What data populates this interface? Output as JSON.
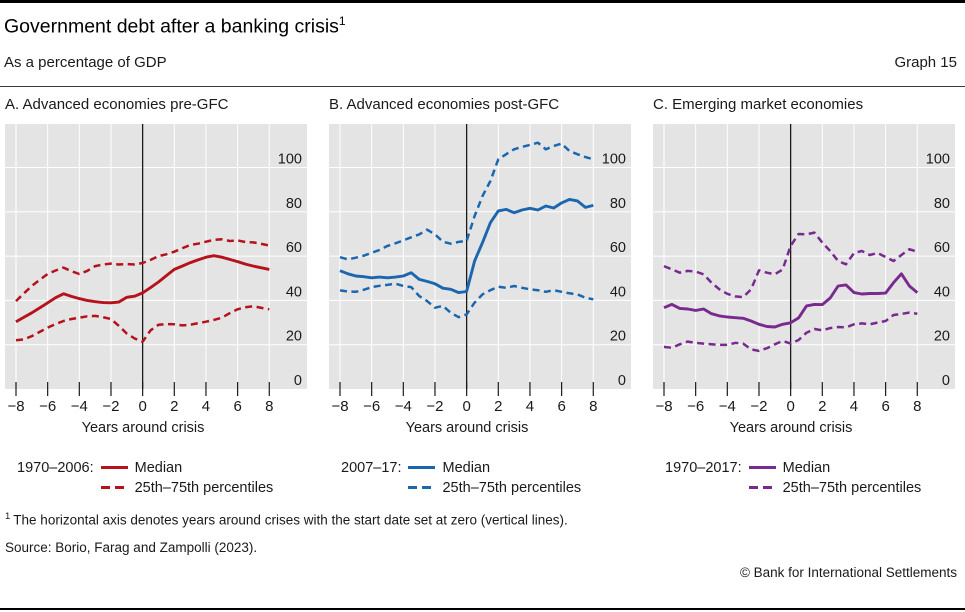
{
  "header": {
    "title": "Government debt after a banking crisis",
    "title_superscript": "1",
    "subtitle": "As a percentage of GDP",
    "graph_label": "Graph 15"
  },
  "panels": [
    {
      "title": "A. Advanced economies pre-GFC",
      "color": "#b5121b",
      "xlabel": "Years around crisis",
      "legend": {
        "period": "1970–2006:",
        "median": "Median",
        "percentiles": "25th–75th percentiles"
      }
    },
    {
      "title": "B. Advanced economies post-GFC",
      "color": "#1a67b0",
      "xlabel": "Years around crisis",
      "legend": {
        "period": "2007–17:",
        "median": "Median",
        "percentiles": "25th–75th percentiles"
      }
    },
    {
      "title": "C. Emerging market economies",
      "color": "#792a8f",
      "xlabel": "Years around crisis",
      "legend": {
        "period": "1970–2017:",
        "median": "Median",
        "percentiles": "25th–75th percentiles"
      }
    }
  ],
  "footnote": {
    "marker": "1",
    "text": "The horizontal axis denotes years around crises with the start date set at zero (vertical lines)."
  },
  "source": "Source: Borio, Farag and Zampolli (2023).",
  "copyright": "© Bank for International Settlements",
  "style_colors": {
    "panel_background": "#e4e4e4",
    "gridline": "#ffffff",
    "axis_text": "#1a1a1a",
    "zero_line": "#1a1a1a",
    "red": "#b5121b",
    "blue": "#1a67b0",
    "purple": "#792a8f"
  },
  "chart_data": [
    {
      "type": "line",
      "title": "A. Advanced economies pre-GFC",
      "xlabel": "Years around crisis",
      "x_start": -8,
      "x_step": 0.5,
      "x_end": 8,
      "ylim": [
        0,
        120
      ],
      "yticks": [
        0,
        20,
        40,
        60,
        80,
        100
      ],
      "xticks": [
        -8,
        -6,
        -4,
        -2,
        0,
        2,
        4,
        6,
        8
      ],
      "xtick_labels": [
        "−8",
        "−6",
        "−4",
        "−2",
        "0",
        "2",
        "4",
        "6",
        "8"
      ],
      "zero_line_x": 0,
      "grid": true,
      "series": [
        {
          "name": "Median",
          "style": "solid",
          "color": "#b5121b",
          "values": [
            30.4,
            32.4,
            34.4,
            36.6,
            38.9,
            41.2,
            43,
            41.8,
            40.8,
            40,
            39.4,
            39,
            38.9,
            39.3,
            41.4,
            41.9,
            43.4,
            45.8,
            48.3,
            51.2,
            54,
            55.5,
            57,
            58.3,
            59.5,
            60.2,
            59.5,
            58.5,
            57.5,
            56.4,
            55.5,
            54.7,
            54
          ]
        },
        {
          "name": "75th percentile",
          "style": "dashed",
          "color": "#b5121b",
          "values": [
            39.7,
            43.2,
            46.5,
            49.3,
            51.9,
            53.5,
            54.8,
            53.2,
            51.9,
            53.3,
            55.5,
            56.2,
            56.6,
            56.2,
            56.4,
            56.2,
            56.9,
            58.3,
            60,
            60.8,
            62,
            63.5,
            65,
            65.6,
            66.5,
            67.3,
            67.6,
            66.8,
            67.1,
            66.3,
            66.2,
            65.5,
            64.8
          ]
        },
        {
          "name": "25th percentile",
          "style": "dashed",
          "color": "#b5121b",
          "values": [
            22,
            22.4,
            23.9,
            25.8,
            27.7,
            29.3,
            30.7,
            31.6,
            32.2,
            32.8,
            33,
            32.4,
            31.6,
            28.5,
            25,
            22.8,
            21.3,
            26.5,
            29,
            29.3,
            29.2,
            28.7,
            29,
            29.7,
            30.4,
            31.2,
            32.2,
            34.2,
            36,
            36.9,
            37.4,
            36.6,
            36
          ]
        }
      ]
    },
    {
      "type": "line",
      "title": "B. Advanced economies post-GFC",
      "xlabel": "Years around crisis",
      "x_start": -8,
      "x_step": 0.5,
      "x_end": 8,
      "ylim": [
        0,
        120
      ],
      "yticks": [
        0,
        20,
        40,
        60,
        80,
        100
      ],
      "xticks": [
        -8,
        -6,
        -4,
        -2,
        0,
        2,
        4,
        6,
        8
      ],
      "xtick_labels": [
        "−8",
        "−6",
        "−4",
        "−2",
        "0",
        "2",
        "4",
        "6",
        "8"
      ],
      "zero_line_x": 0,
      "grid": true,
      "series": [
        {
          "name": "Median",
          "style": "solid",
          "color": "#1a67b0",
          "values": [
            53.4,
            52,
            51,
            50.7,
            50.2,
            50.5,
            50.2,
            50.5,
            51,
            52.5,
            49.5,
            48.6,
            47.5,
            45.5,
            45,
            43.5,
            44,
            57.8,
            66.1,
            75.1,
            80.4,
            81.1,
            79.6,
            80.8,
            81.6,
            80.8,
            82.6,
            81.7,
            84,
            85.6,
            84.9,
            82,
            82.9
          ]
        },
        {
          "name": "75th percentile",
          "style": "dashed",
          "color": "#1a67b0",
          "values": [
            59.5,
            58.5,
            59.3,
            60.2,
            61.5,
            62.8,
            64.6,
            65.8,
            67.1,
            68.5,
            69.8,
            71.9,
            69.8,
            66.5,
            65.6,
            66.4,
            66.8,
            78.1,
            87.1,
            93.9,
            103.7,
            106,
            108.2,
            109.3,
            110.2,
            111.2,
            108.2,
            109.7,
            110.8,
            107.4,
            106,
            104.7,
            103.7
          ]
        },
        {
          "name": "25th percentile",
          "style": "dashed",
          "color": "#1a67b0",
          "values": [
            44.5,
            44,
            43.9,
            44.8,
            46,
            46.6,
            47,
            47.6,
            46.5,
            46,
            42,
            39.7,
            36.7,
            37.5,
            34.4,
            32.4,
            33.7,
            39,
            42.7,
            44.6,
            46.2,
            45.7,
            46.5,
            45.7,
            45,
            44.6,
            43.9,
            44.6,
            43.9,
            43.2,
            42.7,
            41.2,
            40.5
          ]
        }
      ]
    },
    {
      "type": "line",
      "title": "C. Emerging market economies",
      "xlabel": "Years around crisis",
      "x_start": -8,
      "x_step": 0.5,
      "x_end": 8,
      "ylim": [
        0,
        120
      ],
      "yticks": [
        0,
        20,
        40,
        60,
        80,
        100
      ],
      "xticks": [
        -8,
        -6,
        -4,
        -2,
        0,
        2,
        4,
        6,
        8
      ],
      "xtick_labels": [
        "−8",
        "−6",
        "−4",
        "−2",
        "0",
        "2",
        "4",
        "6",
        "8"
      ],
      "zero_line_x": 0,
      "grid": true,
      "series": [
        {
          "name": "Median",
          "style": "solid",
          "color": "#792a8f",
          "values": [
            36.7,
            38.2,
            36.4,
            36.1,
            35.5,
            36.1,
            34,
            33,
            32.5,
            32.2,
            31.9,
            30.7,
            29.2,
            28.2,
            28,
            29.2,
            29.9,
            32.1,
            37.5,
            38.2,
            38.1,
            41.1,
            46.5,
            47,
            43.5,
            42.9,
            43.1,
            43.1,
            43.3,
            48,
            52,
            46.5,
            43.5
          ]
        },
        {
          "name": "75th percentile",
          "style": "dashed",
          "color": "#792a8f",
          "values": [
            55.5,
            54,
            52.5,
            53.3,
            53,
            51.8,
            48,
            45,
            43,
            41.8,
            41.5,
            45,
            53.6,
            52.5,
            51.8,
            54,
            64.6,
            70,
            69.8,
            70.6,
            66.1,
            62.3,
            57.8,
            56.3,
            61.4,
            62.3,
            60.5,
            61.4,
            59.6,
            57.8,
            60.5,
            63.1,
            62
          ]
        },
        {
          "name": "25th percentile",
          "style": "dashed",
          "color": "#792a8f",
          "values": [
            19,
            18.6,
            20.2,
            21.4,
            20.8,
            20.5,
            20.2,
            19.9,
            19.9,
            20.8,
            20.5,
            17.9,
            17.2,
            18.4,
            20.2,
            21.7,
            20.5,
            22.1,
            25.4,
            27.1,
            26.5,
            27.5,
            28,
            27.8,
            29.2,
            29.6,
            29.2,
            30,
            30.7,
            33.4,
            33.9,
            34.5,
            34
          ]
        }
      ]
    }
  ]
}
